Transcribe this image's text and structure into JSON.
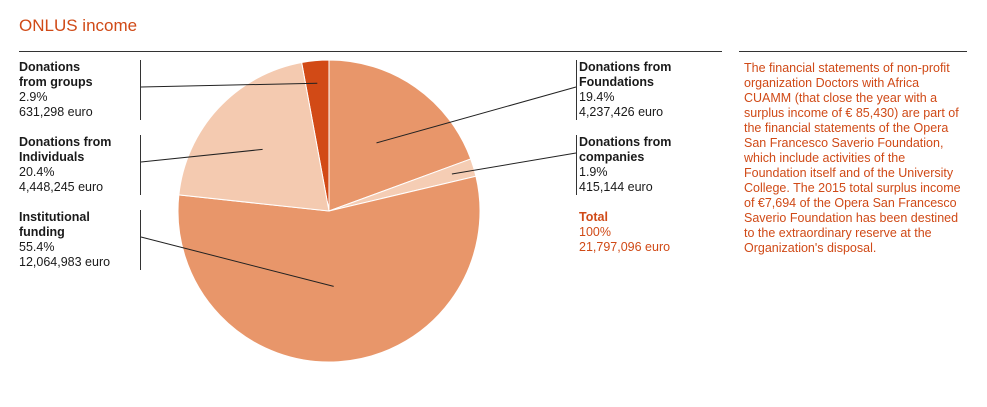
{
  "title": "ONLUS income",
  "colors": {
    "accent": "#d04a17",
    "institutional": "#e8966a",
    "individuals": "#f4cab0",
    "groups": "#d24a16",
    "foundations": "#e8966a",
    "companies": "#f5cdb4"
  },
  "labels": {
    "groups": {
      "name_1": "Donations",
      "name_2": "from groups",
      "pct": "2.9%",
      "amount": "631,298 euro"
    },
    "individuals": {
      "name_1": "Donations from",
      "name_2": "Individuals",
      "pct": "20.4%",
      "amount": "4,448,245 euro"
    },
    "institutional": {
      "name_1": "Institutional",
      "name_2": "funding",
      "pct": "55.4%",
      "amount": "12,064,983 euro"
    },
    "foundations": {
      "name_1": "Donations from",
      "name_2": "Foundations",
      "pct": "19.4%",
      "amount": "4,237,426 euro"
    },
    "companies": {
      "name_1": "Donations from",
      "name_2": "companies",
      "pct": "1.9%",
      "amount": "415,144 euro"
    },
    "total": {
      "name": "Total",
      "pct": "100%",
      "amount": "21,797,096 euro"
    }
  },
  "note": "The financial statements of non-profit organization Doctors with Africa CUAMM (that close the year with a surplus income of € 85,430) are part of the financial statements of the Opera San Francesco Saverio Foundation, which include activities of the Foundation itself and of the University College. The 2015 total surplus income of €7,694 of the Opera San Francesco Saverio Foundation has been destined to the extraordinary reserve at the Organization's disposal.",
  "chart_data": {
    "type": "pie",
    "title": "ONLUS income",
    "unit": "euro",
    "slices": [
      {
        "key": "groups",
        "label": "Donations from groups",
        "percent": 2.9,
        "value": 631298
      },
      {
        "key": "foundations",
        "label": "Donations from Foundations",
        "percent": 19.4,
        "value": 4237426
      },
      {
        "key": "companies",
        "label": "Donations from companies",
        "percent": 1.9,
        "value": 415144
      },
      {
        "key": "institutional",
        "label": "Institutional funding",
        "percent": 55.4,
        "value": 12064983
      },
      {
        "key": "individuals",
        "label": "Donations from Individuals",
        "percent": 20.4,
        "value": 4448245
      }
    ],
    "total": {
      "label": "Total",
      "percent": 100,
      "value": 21797096
    }
  }
}
